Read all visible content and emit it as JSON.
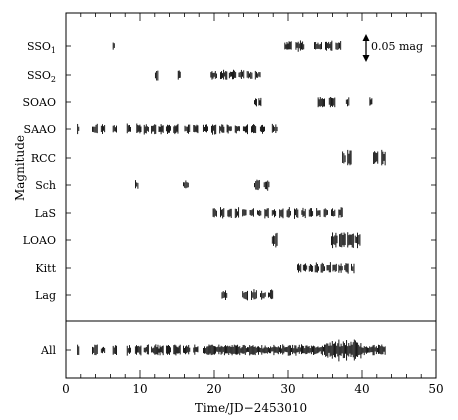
{
  "chart_data": {
    "type": "scatter",
    "title": "",
    "xlabel": "Time/JD−2453010",
    "ylabel": "Magnitude",
    "xlim": [
      0,
      50
    ],
    "x_ticks": [
      0,
      10,
      20,
      30,
      40,
      50
    ],
    "grid": false,
    "legend": "none",
    "scale_bar": {
      "label": "0.05 mag",
      "value_mag": 0.05
    },
    "series": [
      {
        "name": "SSO1",
        "sub": "1",
        "label": "SSO",
        "windows": [
          [
            6.3,
            6.6
          ],
          [
            29.5,
            30.5
          ],
          [
            31.0,
            32.2
          ],
          [
            33.5,
            34.6
          ],
          [
            35.0,
            36.0
          ],
          [
            36.4,
            37.2
          ]
        ]
      },
      {
        "name": "SSO2",
        "sub": "2",
        "label": "SSO",
        "windows": [
          [
            12.0,
            12.5
          ],
          [
            15.1,
            15.5
          ],
          [
            19.5,
            20.4
          ],
          [
            20.8,
            21.8
          ],
          [
            22.0,
            23.0
          ],
          [
            23.3,
            24.1
          ],
          [
            24.4,
            25.2
          ],
          [
            25.5,
            26.3
          ]
        ]
      },
      {
        "name": "SOAO",
        "sub": "",
        "label": "SOAO",
        "windows": [
          [
            25.4,
            25.8
          ],
          [
            26.0,
            26.4
          ],
          [
            34.0,
            35.0
          ],
          [
            35.5,
            36.4
          ],
          [
            37.8,
            38.3
          ],
          [
            41.0,
            41.4
          ]
        ]
      },
      {
        "name": "SAAO",
        "sub": "",
        "label": "SAAO",
        "windows": [
          [
            1.5,
            1.8
          ],
          [
            3.5,
            4.3
          ],
          [
            4.7,
            5.3
          ],
          [
            6.3,
            6.9
          ],
          [
            8.2,
            8.8
          ],
          [
            9.5,
            10.2
          ],
          [
            10.5,
            11.2
          ],
          [
            11.5,
            12.2
          ],
          [
            12.5,
            13.2
          ],
          [
            13.5,
            14.2
          ],
          [
            14.5,
            15.2
          ],
          [
            16.0,
            16.8
          ],
          [
            17.2,
            17.9
          ],
          [
            18.5,
            19.2
          ],
          [
            19.6,
            20.3
          ],
          [
            20.7,
            21.4
          ],
          [
            21.7,
            22.4
          ],
          [
            22.8,
            23.5
          ],
          [
            23.9,
            24.6
          ],
          [
            25.0,
            25.7
          ],
          [
            26.2,
            26.9
          ],
          [
            27.8,
            28.6
          ]
        ]
      },
      {
        "name": "RCC",
        "sub": "",
        "label": "RCC",
        "windows": [
          [
            37.3,
            37.8
          ],
          [
            38.0,
            38.6
          ],
          [
            41.5,
            42.2
          ],
          [
            42.6,
            43.2
          ]
        ]
      },
      {
        "name": "Sch",
        "sub": "",
        "label": "Sch",
        "windows": [
          [
            9.3,
            9.8
          ],
          [
            15.8,
            16.6
          ],
          [
            25.4,
            26.2
          ],
          [
            26.7,
            27.5
          ]
        ]
      },
      {
        "name": "LaS",
        "sub": "",
        "label": "LaS",
        "windows": [
          [
            19.8,
            20.4
          ],
          [
            20.8,
            21.4
          ],
          [
            21.8,
            22.4
          ],
          [
            22.8,
            23.4
          ],
          [
            23.8,
            24.4
          ],
          [
            24.8,
            25.4
          ],
          [
            25.8,
            26.4
          ],
          [
            26.8,
            27.4
          ],
          [
            27.8,
            28.4
          ],
          [
            28.8,
            29.4
          ],
          [
            29.8,
            30.4
          ],
          [
            30.8,
            31.4
          ],
          [
            31.8,
            32.4
          ],
          [
            32.8,
            33.4
          ],
          [
            33.8,
            34.4
          ],
          [
            34.8,
            35.4
          ],
          [
            35.8,
            36.4
          ],
          [
            36.8,
            37.4
          ]
        ]
      },
      {
        "name": "LOAO",
        "sub": "",
        "label": "LOAO",
        "windows": [
          [
            27.8,
            28.6
          ],
          [
            35.8,
            36.7
          ],
          [
            36.9,
            37.8
          ],
          [
            38.0,
            38.9
          ],
          [
            39.0,
            39.8
          ]
        ]
      },
      {
        "name": "Kitt",
        "sub": "",
        "label": "Kitt",
        "windows": [
          [
            31.2,
            31.8
          ],
          [
            32.0,
            32.6
          ],
          [
            32.8,
            33.4
          ],
          [
            33.6,
            34.2
          ],
          [
            34.4,
            35.0
          ],
          [
            35.2,
            35.8
          ],
          [
            36.0,
            36.6
          ],
          [
            36.8,
            37.4
          ],
          [
            37.6,
            38.2
          ],
          [
            38.5,
            39.0
          ]
        ]
      },
      {
        "name": "Lag",
        "sub": "",
        "label": "Lag",
        "windows": [
          [
            21.0,
            21.8
          ],
          [
            23.8,
            24.6
          ],
          [
            25.0,
            25.8
          ],
          [
            26.2,
            27.0
          ],
          [
            27.3,
            28.0
          ]
        ]
      },
      {
        "name": "All",
        "sub": "",
        "label": "All",
        "windows": [
          [
            1.5,
            1.8
          ],
          [
            3.5,
            4.3
          ],
          [
            4.7,
            5.3
          ],
          [
            6.3,
            6.9
          ],
          [
            8.2,
            8.8
          ],
          [
            9.3,
            10.2
          ],
          [
            10.5,
            11.2
          ],
          [
            11.5,
            12.5
          ],
          [
            12.5,
            13.2
          ],
          [
            13.5,
            14.2
          ],
          [
            14.5,
            15.5
          ],
          [
            15.8,
            16.8
          ],
          [
            17.2,
            17.9
          ],
          [
            18.5,
            43.2
          ]
        ]
      }
    ]
  }
}
